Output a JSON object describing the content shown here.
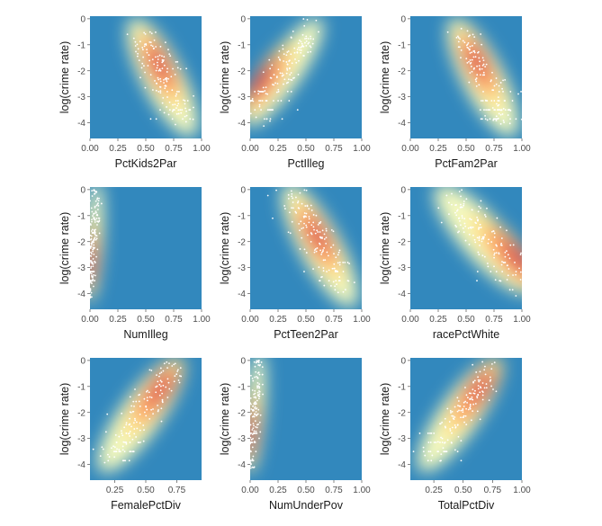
{
  "figure": {
    "ylabel": "log(crime rate)"
  },
  "colors": {
    "panel_bg": "#ebebeb",
    "density_low": "#3288bd",
    "density_mid": "#ffffbf",
    "density_high": "#d53e4f",
    "points": "#ffffff",
    "tick_text": "#4d4d4d"
  },
  "chart_data": [
    {
      "type": "scatter",
      "subtype": "2d-density",
      "xlabel": "PctKids2Par",
      "ylabel": "log(crime rate)",
      "xlim": [
        0,
        1
      ],
      "ylim": [
        -4.6,
        0.1
      ],
      "xticks": [
        0,
        0.25,
        0.5,
        0.75,
        1
      ],
      "xticklabels": [
        "0.00",
        "0.25",
        "0.50",
        "0.75",
        "1.00"
      ],
      "yticks": [
        0,
        -1,
        -2,
        -3,
        -4
      ],
      "yticklabels": [
        "0",
        "-1",
        "-2",
        "-3",
        "-4"
      ],
      "trend": {
        "from": [
          0.45,
          -0.6
        ],
        "to": [
          0.85,
          -3.9
        ]
      },
      "spread": {
        "x": 0.11,
        "y": 0.45
      },
      "density_peak": [
        0.62,
        -1.8
      ]
    },
    {
      "type": "scatter",
      "subtype": "2d-density",
      "xlabel": "PctIlleg",
      "ylabel": "log(crime rate)",
      "xlim": [
        0,
        1
      ],
      "ylim": [
        -4.6,
        0.1
      ],
      "xticks": [
        0,
        0.25,
        0.5,
        0.75,
        1
      ],
      "xticklabels": [
        "0.00",
        "0.25",
        "0.50",
        "0.75",
        "1.00"
      ],
      "yticks": [
        0,
        -1,
        -2,
        -3,
        -4
      ],
      "yticklabels": [
        "0",
        "-1",
        "-2",
        "-3",
        "-4"
      ],
      "trend": {
        "from": [
          0.05,
          -3.6
        ],
        "to": [
          0.55,
          -0.5
        ]
      },
      "spread": {
        "x": 0.09,
        "y": 0.5
      },
      "density_peak": [
        0.12,
        -2.4
      ]
    },
    {
      "type": "scatter",
      "subtype": "2d-density",
      "xlabel": "PctFam2Par",
      "ylabel": "log(crime rate)",
      "xlim": [
        0,
        1
      ],
      "ylim": [
        -4.6,
        0.1
      ],
      "xticks": [
        0,
        0.25,
        0.5,
        0.75,
        1
      ],
      "xticklabels": [
        "0.00",
        "0.25",
        "0.50",
        "0.75",
        "1.00"
      ],
      "yticks": [
        0,
        -1,
        -2,
        -3,
        -4
      ],
      "yticklabels": [
        "0",
        "-1",
        "-2",
        "-3",
        "-4"
      ],
      "trend": {
        "from": [
          0.45,
          -0.6
        ],
        "to": [
          0.85,
          -3.9
        ]
      },
      "spread": {
        "x": 0.11,
        "y": 0.45
      },
      "density_peak": [
        0.6,
        -1.7
      ]
    },
    {
      "type": "scatter",
      "subtype": "2d-density",
      "xlabel": "NumIlleg",
      "ylabel": "log(crime rate)",
      "xlim": [
        0,
        1
      ],
      "ylim": [
        -4.6,
        0.1
      ],
      "xticks": [
        0,
        0.25,
        0.5,
        0.75,
        1
      ],
      "xticklabels": [
        "0.00",
        "0.25",
        "0.50",
        "0.75",
        "1.00"
      ],
      "yticks": [
        0,
        -1,
        -2,
        -3,
        -4
      ],
      "yticklabels": [
        "0",
        "-1",
        "-2",
        "-3",
        "-4"
      ],
      "trend": {
        "from": [
          0.0,
          -4.0
        ],
        "to": [
          0.06,
          0.0
        ]
      },
      "spread": {
        "x": 0.03,
        "y": 0.7
      },
      "density_peak": [
        0.0,
        -2.8
      ]
    },
    {
      "type": "scatter",
      "subtype": "2d-density",
      "xlabel": "PctTeen2Par",
      "ylabel": "log(crime rate)",
      "xlim": [
        0,
        1
      ],
      "ylim": [
        -4.6,
        0.1
      ],
      "xticks": [
        0,
        0.25,
        0.5,
        0.75,
        1
      ],
      "xticklabels": [
        "0.00",
        "0.25",
        "0.50",
        "0.75",
        "1.00"
      ],
      "yticks": [
        0,
        -1,
        -2,
        -3,
        -4
      ],
      "yticklabels": [
        "0",
        "-1",
        "-2",
        "-3",
        "-4"
      ],
      "trend": {
        "from": [
          0.4,
          -0.4
        ],
        "to": [
          0.85,
          -3.9
        ]
      },
      "spread": {
        "x": 0.11,
        "y": 0.45
      },
      "density_peak": [
        0.6,
        -1.8
      ]
    },
    {
      "type": "scatter",
      "subtype": "2d-density",
      "xlabel": "racePctWhite",
      "ylabel": "log(crime rate)",
      "xlim": [
        0,
        1
      ],
      "ylim": [
        -4.6,
        0.1
      ],
      "xticks": [
        0,
        0.25,
        0.5,
        0.75,
        1
      ],
      "xticklabels": [
        "0.00",
        "0.25",
        "0.50",
        "0.75",
        "1.00"
      ],
      "yticks": [
        0,
        -1,
        -2,
        -3,
        -4
      ],
      "yticklabels": [
        "0",
        "-1",
        "-2",
        "-3",
        "-4"
      ],
      "trend": {
        "from": [
          0.35,
          -0.4
        ],
        "to": [
          0.97,
          -3.4
        ]
      },
      "spread": {
        "x": 0.12,
        "y": 0.5
      },
      "density_peak": [
        0.93,
        -2.6
      ]
    },
    {
      "type": "scatter",
      "subtype": "2d-density",
      "xlabel": "FemalePctDiv",
      "ylabel": "log(crime rate)",
      "xlim": [
        0.05,
        0.95
      ],
      "ylim": [
        -4.6,
        0.1
      ],
      "xticks": [
        0.25,
        0.5,
        0.75
      ],
      "xticklabels": [
        "0.25",
        "0.50",
        "0.75"
      ],
      "yticks": [
        0,
        -1,
        -2,
        -3,
        -4
      ],
      "yticklabels": [
        "0",
        "-1",
        "-2",
        "-3",
        "-4"
      ],
      "trend": {
        "from": [
          0.22,
          -3.7
        ],
        "to": [
          0.7,
          -0.5
        ]
      },
      "spread": {
        "x": 0.1,
        "y": 0.45
      },
      "density_peak": [
        0.6,
        -1.2
      ]
    },
    {
      "type": "scatter",
      "subtype": "2d-density",
      "xlabel": "NumUnderPov",
      "ylabel": "log(crime rate)",
      "xlim": [
        0,
        1
      ],
      "ylim": [
        -4.6,
        0.1
      ],
      "xticks": [
        0,
        0.25,
        0.5,
        0.75,
        1
      ],
      "xticklabels": [
        "0.00",
        "0.25",
        "0.50",
        "0.75",
        "1.00"
      ],
      "yticks": [
        0,
        -1,
        -2,
        -3,
        -4
      ],
      "yticklabels": [
        "0",
        "-1",
        "-2",
        "-3",
        "-4"
      ],
      "trend": {
        "from": [
          0.0,
          -4.0
        ],
        "to": [
          0.08,
          0.0
        ]
      },
      "spread": {
        "x": 0.035,
        "y": 0.7
      },
      "density_peak": [
        0.0,
        -2.8
      ]
    },
    {
      "type": "scatter",
      "subtype": "2d-density",
      "xlabel": "TotalPctDiv",
      "ylabel": "log(crime rate)",
      "xlim": [
        0.05,
        1.0
      ],
      "ylim": [
        -4.6,
        0.1
      ],
      "xticks": [
        0.25,
        0.5,
        0.75,
        1
      ],
      "xticklabels": [
        "0.25",
        "0.50",
        "0.75",
        "1.00"
      ],
      "yticks": [
        0,
        -1,
        -2,
        -3,
        -4
      ],
      "yticklabels": [
        "0",
        "-1",
        "-2",
        "-3",
        "-4"
      ],
      "trend": {
        "from": [
          0.22,
          -3.7
        ],
        "to": [
          0.72,
          -0.5
        ]
      },
      "spread": {
        "x": 0.1,
        "y": 0.45
      },
      "density_peak": [
        0.62,
        -1.2
      ]
    }
  ]
}
